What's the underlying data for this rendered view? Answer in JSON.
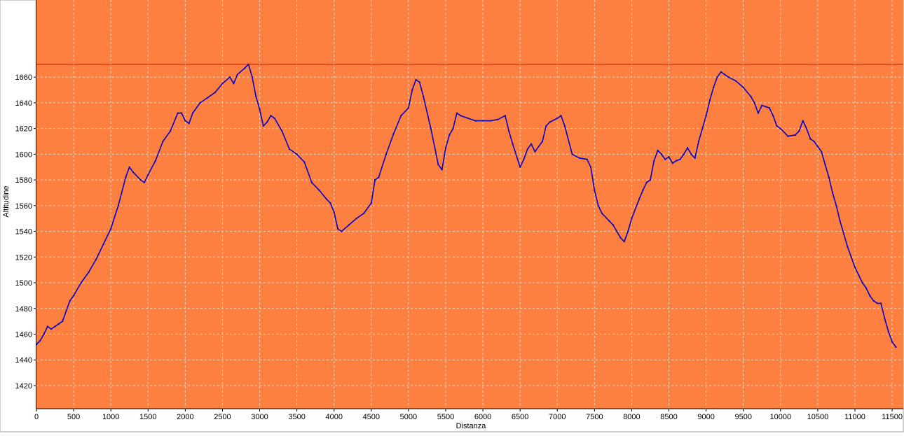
{
  "chart_data": {
    "type": "line",
    "title": "",
    "xlabel": "Distanza",
    "ylabel": "Altitudine",
    "x_ticks": [
      0,
      500,
      1000,
      1500,
      2000,
      2500,
      3000,
      3500,
      4000,
      4500,
      5000,
      5500,
      6000,
      6500,
      7000,
      7500,
      8000,
      8500,
      9000,
      9500,
      10000,
      10500,
      11000,
      11500
    ],
    "y_ticks": [
      1420,
      1440,
      1460,
      1480,
      1500,
      1520,
      1540,
      1560,
      1580,
      1600,
      1620,
      1640,
      1660
    ],
    "xlim": [
      0,
      11650
    ],
    "ylim": [
      1402,
      1720
    ],
    "grid": true,
    "reference_line": 1670,
    "colors": {
      "background": "#fe8040",
      "line": "#0000c8",
      "grid": "#f5d2b4",
      "reference_line": "#dd0000",
      "axis": "#000000"
    },
    "series": [
      {
        "points": [
          [
            0,
            1452
          ],
          [
            50,
            1455
          ],
          [
            100,
            1460
          ],
          [
            150,
            1466
          ],
          [
            200,
            1464
          ],
          [
            250,
            1466
          ],
          [
            300,
            1468
          ],
          [
            350,
            1470
          ],
          [
            400,
            1478
          ],
          [
            450,
            1486
          ],
          [
            500,
            1490
          ],
          [
            600,
            1500
          ],
          [
            700,
            1508
          ],
          [
            800,
            1518
          ],
          [
            900,
            1530
          ],
          [
            1000,
            1542
          ],
          [
            1100,
            1560
          ],
          [
            1200,
            1582
          ],
          [
            1250,
            1590
          ],
          [
            1300,
            1586
          ],
          [
            1400,
            1580
          ],
          [
            1450,
            1578
          ],
          [
            1500,
            1584
          ],
          [
            1600,
            1595
          ],
          [
            1700,
            1610
          ],
          [
            1800,
            1618
          ],
          [
            1900,
            1632
          ],
          [
            1950,
            1632
          ],
          [
            2000,
            1626
          ],
          [
            2050,
            1624
          ],
          [
            2100,
            1632
          ],
          [
            2200,
            1640
          ],
          [
            2300,
            1644
          ],
          [
            2400,
            1648
          ],
          [
            2500,
            1655
          ],
          [
            2600,
            1660
          ],
          [
            2650,
            1655
          ],
          [
            2700,
            1662
          ],
          [
            2800,
            1667
          ],
          [
            2850,
            1670
          ],
          [
            2900,
            1660
          ],
          [
            2950,
            1645
          ],
          [
            3000,
            1635
          ],
          [
            3050,
            1622
          ],
          [
            3100,
            1625
          ],
          [
            3150,
            1630
          ],
          [
            3200,
            1628
          ],
          [
            3300,
            1618
          ],
          [
            3400,
            1604
          ],
          [
            3500,
            1600
          ],
          [
            3600,
            1594
          ],
          [
            3700,
            1578
          ],
          [
            3800,
            1572
          ],
          [
            3900,
            1565
          ],
          [
            3950,
            1562
          ],
          [
            4000,
            1555
          ],
          [
            4050,
            1542
          ],
          [
            4100,
            1540
          ],
          [
            4200,
            1545
          ],
          [
            4300,
            1550
          ],
          [
            4400,
            1554
          ],
          [
            4500,
            1562
          ],
          [
            4550,
            1580
          ],
          [
            4600,
            1582
          ],
          [
            4700,
            1600
          ],
          [
            4800,
            1616
          ],
          [
            4900,
            1630
          ],
          [
            5000,
            1636
          ],
          [
            5050,
            1650
          ],
          [
            5100,
            1658
          ],
          [
            5150,
            1656
          ],
          [
            5200,
            1645
          ],
          [
            5300,
            1620
          ],
          [
            5400,
            1592
          ],
          [
            5450,
            1588
          ],
          [
            5500,
            1605
          ],
          [
            5550,
            1615
          ],
          [
            5600,
            1620
          ],
          [
            5650,
            1632
          ],
          [
            5700,
            1630
          ],
          [
            5800,
            1628
          ],
          [
            5900,
            1626
          ],
          [
            6000,
            1626
          ],
          [
            6100,
            1626
          ],
          [
            6200,
            1627
          ],
          [
            6300,
            1630
          ],
          [
            6350,
            1618
          ],
          [
            6400,
            1608
          ],
          [
            6500,
            1590
          ],
          [
            6550,
            1596
          ],
          [
            6600,
            1604
          ],
          [
            6650,
            1608
          ],
          [
            6700,
            1602
          ],
          [
            6800,
            1610
          ],
          [
            6850,
            1622
          ],
          [
            6900,
            1625
          ],
          [
            7000,
            1628
          ],
          [
            7050,
            1630
          ],
          [
            7100,
            1622
          ],
          [
            7200,
            1600
          ],
          [
            7300,
            1597
          ],
          [
            7400,
            1596
          ],
          [
            7450,
            1590
          ],
          [
            7500,
            1572
          ],
          [
            7550,
            1560
          ],
          [
            7600,
            1554
          ],
          [
            7700,
            1548
          ],
          [
            7750,
            1545
          ],
          [
            7800,
            1540
          ],
          [
            7850,
            1535
          ],
          [
            7900,
            1532
          ],
          [
            7950,
            1540
          ],
          [
            8000,
            1550
          ],
          [
            8100,
            1565
          ],
          [
            8150,
            1572
          ],
          [
            8200,
            1578
          ],
          [
            8250,
            1580
          ],
          [
            8300,
            1595
          ],
          [
            8350,
            1603
          ],
          [
            8400,
            1600
          ],
          [
            8450,
            1596
          ],
          [
            8500,
            1598
          ],
          [
            8550,
            1593
          ],
          [
            8600,
            1595
          ],
          [
            8650,
            1596
          ],
          [
            8700,
            1600
          ],
          [
            8750,
            1605
          ],
          [
            8800,
            1600
          ],
          [
            8850,
            1597
          ],
          [
            8900,
            1610
          ],
          [
            8950,
            1620
          ],
          [
            9000,
            1630
          ],
          [
            9050,
            1642
          ],
          [
            9100,
            1652
          ],
          [
            9150,
            1660
          ],
          [
            9200,
            1664
          ],
          [
            9250,
            1662
          ],
          [
            9300,
            1660
          ],
          [
            9400,
            1657
          ],
          [
            9500,
            1652
          ],
          [
            9600,
            1645
          ],
          [
            9650,
            1640
          ],
          [
            9700,
            1632
          ],
          [
            9750,
            1638
          ],
          [
            9800,
            1637
          ],
          [
            9850,
            1636
          ],
          [
            9900,
            1630
          ],
          [
            9950,
            1622
          ],
          [
            10000,
            1620
          ],
          [
            10100,
            1614
          ],
          [
            10200,
            1615
          ],
          [
            10250,
            1618
          ],
          [
            10300,
            1626
          ],
          [
            10350,
            1620
          ],
          [
            10400,
            1612
          ],
          [
            10450,
            1610
          ],
          [
            10500,
            1606
          ],
          [
            10550,
            1602
          ],
          [
            10600,
            1592
          ],
          [
            10650,
            1582
          ],
          [
            10700,
            1570
          ],
          [
            10750,
            1560
          ],
          [
            10800,
            1548
          ],
          [
            10850,
            1538
          ],
          [
            10900,
            1528
          ],
          [
            10950,
            1520
          ],
          [
            11000,
            1512
          ],
          [
            11050,
            1506
          ],
          [
            11100,
            1500
          ],
          [
            11150,
            1496
          ],
          [
            11200,
            1490
          ],
          [
            11250,
            1486
          ],
          [
            11300,
            1484
          ],
          [
            11350,
            1484
          ],
          [
            11400,
            1472
          ],
          [
            11450,
            1462
          ],
          [
            11500,
            1454
          ],
          [
            11550,
            1450
          ]
        ]
      }
    ]
  }
}
